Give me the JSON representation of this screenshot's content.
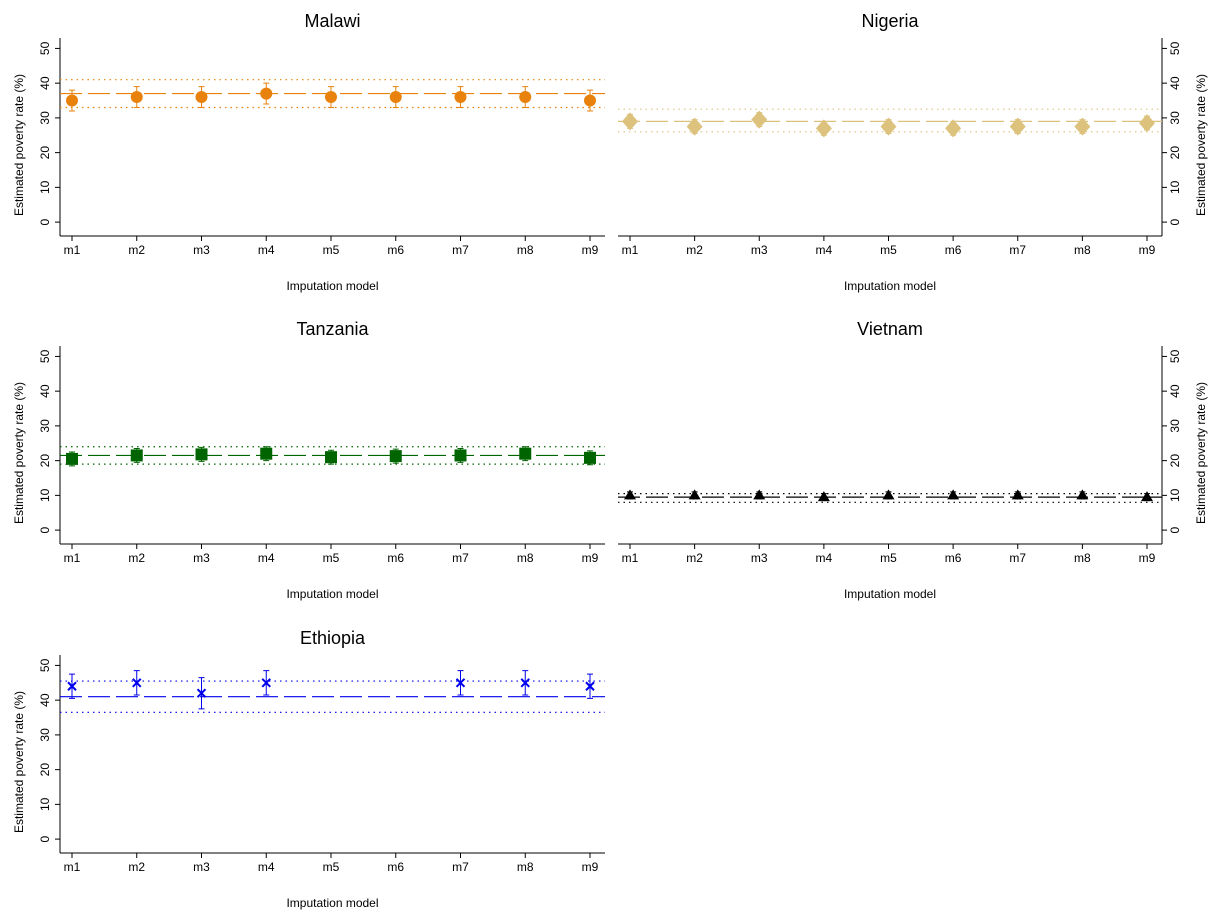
{
  "chart_data": [
    {
      "type": "errorbar",
      "title": "Malawi",
      "xlabel": "Imputation model",
      "ylabel": "Estimated poverty rate (%)",
      "categories": [
        "m1",
        "m2",
        "m3",
        "m4",
        "m5",
        "m6",
        "m7",
        "m8",
        "m9"
      ],
      "values": [
        35,
        36,
        36,
        37,
        36,
        36,
        36,
        36,
        35
      ],
      "errors": [
        3,
        3,
        3,
        3,
        3,
        3,
        3,
        3,
        3
      ],
      "color": "#e8820c",
      "marker": "circle",
      "yaxis_side": "left",
      "hlines": [
        {
          "value": 37,
          "style": "dashed"
        },
        {
          "value": 41,
          "style": "dotted"
        },
        {
          "value": 33,
          "style": "dotted"
        }
      ],
      "ylim": [
        -4,
        53
      ],
      "yticks": [
        0,
        10,
        20,
        30,
        40,
        50
      ]
    },
    {
      "type": "errorbar",
      "title": "Nigeria",
      "xlabel": "Imputation model",
      "ylabel": "Estimated poverty rate (%)",
      "categories": [
        "m1",
        "m2",
        "m3",
        "m4",
        "m5",
        "m6",
        "m7",
        "m8",
        "m9"
      ],
      "values": [
        29,
        27.5,
        29.5,
        27,
        27.5,
        27,
        27.5,
        27.5,
        28.5
      ],
      "errors": [
        2,
        2,
        2,
        2,
        2,
        2,
        2,
        2,
        2
      ],
      "color": "#dcc27d",
      "marker": "diamond",
      "yaxis_side": "right",
      "hlines": [
        {
          "value": 29,
          "style": "dashed"
        },
        {
          "value": 32.5,
          "style": "dotted"
        },
        {
          "value": 26,
          "style": "dotted"
        }
      ],
      "ylim": [
        -4,
        53
      ],
      "yticks": [
        0,
        10,
        20,
        30,
        40,
        50
      ]
    },
    {
      "type": "errorbar",
      "title": "Tanzania",
      "xlabel": "Imputation model",
      "ylabel": "Estimated poverty rate (%)",
      "categories": [
        "m1",
        "m2",
        "m3",
        "m4",
        "m5",
        "m6",
        "m7",
        "m8",
        "m9"
      ],
      "values": [
        20.5,
        21.5,
        21.8,
        22,
        21,
        21.3,
        21.5,
        22,
        20.8
      ],
      "errors": [
        2,
        2,
        2,
        2,
        2,
        2,
        2,
        2,
        2
      ],
      "color": "#006400",
      "marker": "square",
      "yaxis_side": "left",
      "hlines": [
        {
          "value": 21.5,
          "style": "dashed"
        },
        {
          "value": 24,
          "style": "dotted"
        },
        {
          "value": 19,
          "style": "dotted"
        }
      ],
      "ylim": [
        -4,
        53
      ],
      "yticks": [
        0,
        10,
        20,
        30,
        40,
        50
      ]
    },
    {
      "type": "errorbar",
      "title": "Vietnam",
      "xlabel": "Imputation model",
      "ylabel": "Estimated poverty rate (%)",
      "categories": [
        "m1",
        "m2",
        "m3",
        "m4",
        "m5",
        "m6",
        "m7",
        "m8",
        "m9"
      ],
      "values": [
        10,
        10,
        10,
        9.5,
        10,
        10,
        10,
        10,
        9.5
      ],
      "errors": [
        1,
        1,
        1,
        1,
        1,
        1,
        1,
        1,
        1
      ],
      "color": "#000000",
      "marker": "triangle",
      "yaxis_side": "right",
      "hlines": [
        {
          "value": 9.5,
          "style": "dashed"
        },
        {
          "value": 10.5,
          "style": "dotted"
        },
        {
          "value": 8,
          "style": "dotted"
        }
      ],
      "ylim": [
        -4,
        53
      ],
      "yticks": [
        0,
        10,
        20,
        30,
        40,
        50
      ]
    },
    {
      "type": "errorbar",
      "title": "Ethiopia",
      "xlabel": "Imputation model",
      "ylabel": "Estimated poverty rate (%)",
      "categories": [
        "m1",
        "m2",
        "m3",
        "m4",
        "m5",
        "m6",
        "m7",
        "m8",
        "m9"
      ],
      "values": [
        44,
        45,
        42,
        45,
        null,
        null,
        45,
        45,
        44
      ],
      "errors": [
        3.5,
        3.5,
        4.5,
        3.5,
        null,
        null,
        3.5,
        3.5,
        3.5
      ],
      "color": "#0000ee",
      "marker": "x",
      "yaxis_side": "left",
      "hlines": [
        {
          "value": 41,
          "style": "dashed"
        },
        {
          "value": 45.5,
          "style": "dotted"
        },
        {
          "value": 36.5,
          "style": "dotted"
        }
      ],
      "ylim": [
        -4,
        53
      ],
      "yticks": [
        0,
        10,
        20,
        30,
        40,
        50
      ]
    }
  ]
}
